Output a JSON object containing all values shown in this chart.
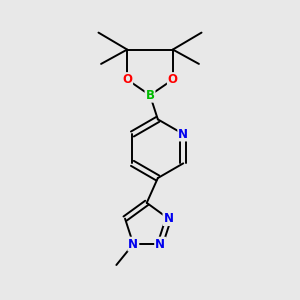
{
  "bg_color": "#e8e8e8",
  "bond_color": "#000000",
  "bond_width": 1.4,
  "atom_colors": {
    "B": "#00bb00",
    "O": "#ff0000",
    "N": "#0000ee",
    "C": "#000000"
  },
  "figsize": [
    3.0,
    3.0
  ],
  "dpi": 100,
  "xlim": [
    -0.7,
    0.7
  ],
  "ylim": [
    -0.85,
    1.45
  ]
}
